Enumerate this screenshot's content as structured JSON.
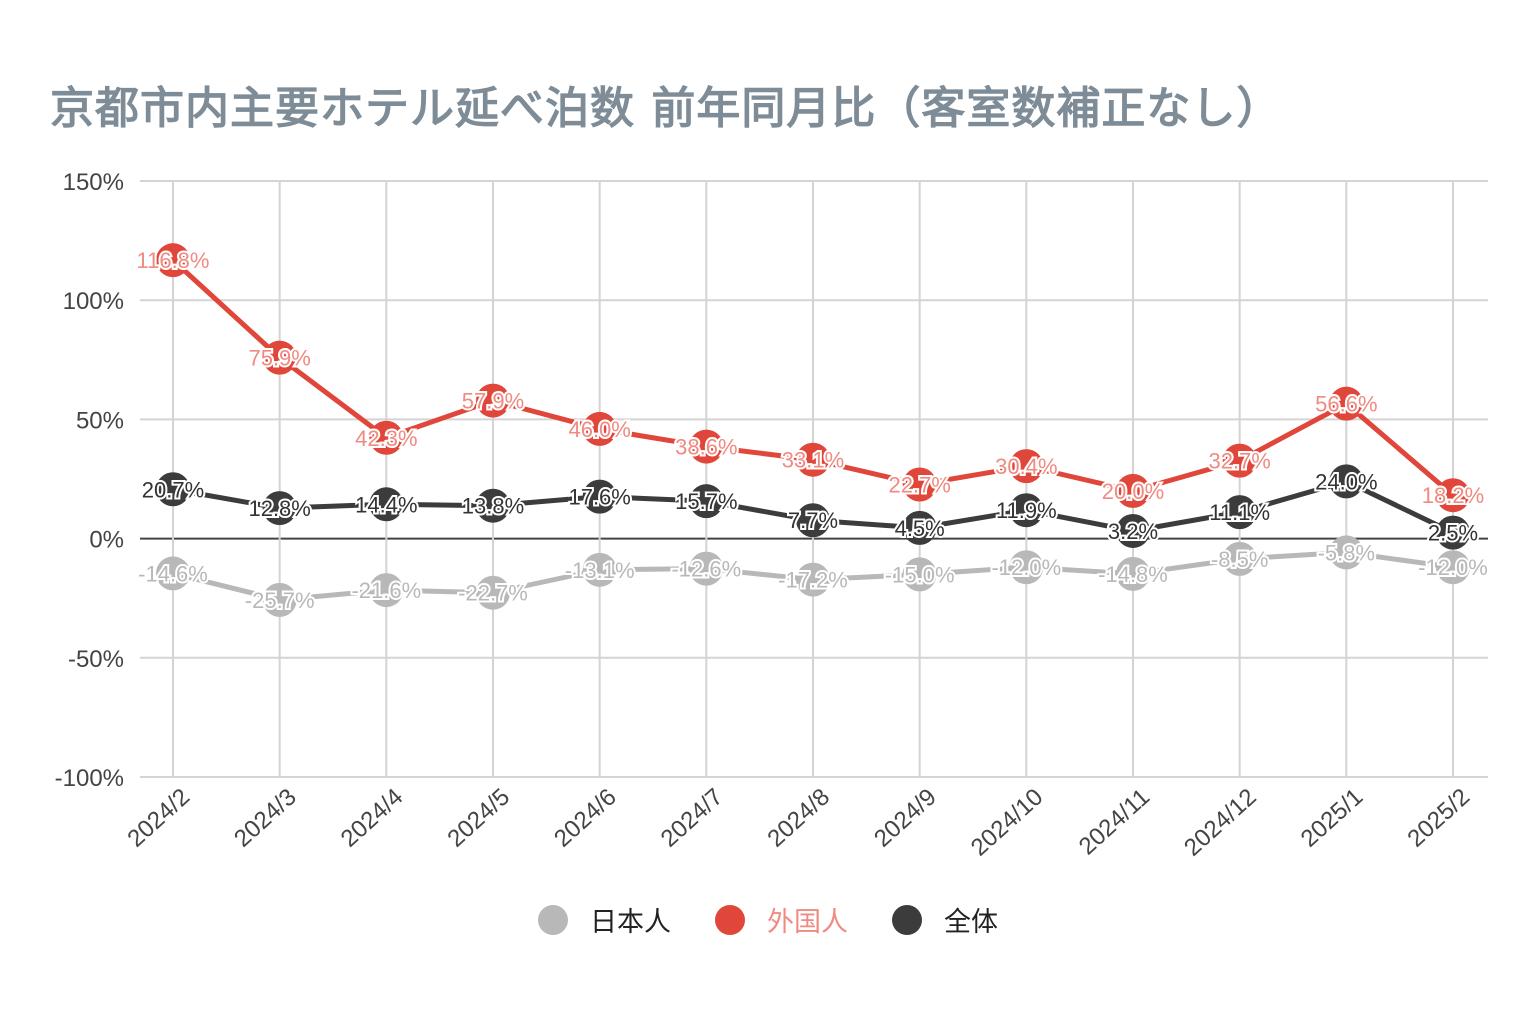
{
  "chart_data": {
    "type": "line",
    "title": "京都市内主要ホテル延べ泊数  前年同月比（客室数補正なし）",
    "xlabel": "",
    "ylabel": "",
    "ylim": [
      -100,
      150
    ],
    "yticks": [
      150,
      100,
      50,
      0,
      -50,
      -100
    ],
    "ytick_labels": [
      "150%",
      "100%",
      "50%",
      "0%",
      "-50%",
      "-100%"
    ],
    "grid": true,
    "legend_position": "bottom",
    "categories": [
      "2024/2",
      "2024/3",
      "2024/4",
      "2024/5",
      "2024/6",
      "2024/7",
      "2024/8",
      "2024/9",
      "2024/10",
      "2024/11",
      "2024/12",
      "2025/1",
      "2025/2"
    ],
    "series": [
      {
        "name": "日本人",
        "color": "#b8b8b8",
        "label_color": "#b8b8b8",
        "values": [
          -14.6,
          -25.7,
          -21.6,
          -22.7,
          -13.1,
          -12.6,
          -17.2,
          -15.0,
          -12.0,
          -14.8,
          -8.5,
          -5.8,
          -12.0
        ]
      },
      {
        "name": "外国人",
        "color": "#e0463a",
        "label_color": "#f08a82",
        "values": [
          116.8,
          75.9,
          42.3,
          57.9,
          46.0,
          38.6,
          33.1,
          22.7,
          30.4,
          20.0,
          32.7,
          56.6,
          18.2
        ]
      },
      {
        "name": "全体",
        "color": "#3c3c3c",
        "label_color": "#333333",
        "values": [
          20.7,
          12.8,
          14.4,
          13.8,
          17.6,
          15.7,
          7.7,
          4.5,
          11.9,
          3.2,
          11.1,
          24.0,
          2.5
        ]
      }
    ]
  }
}
